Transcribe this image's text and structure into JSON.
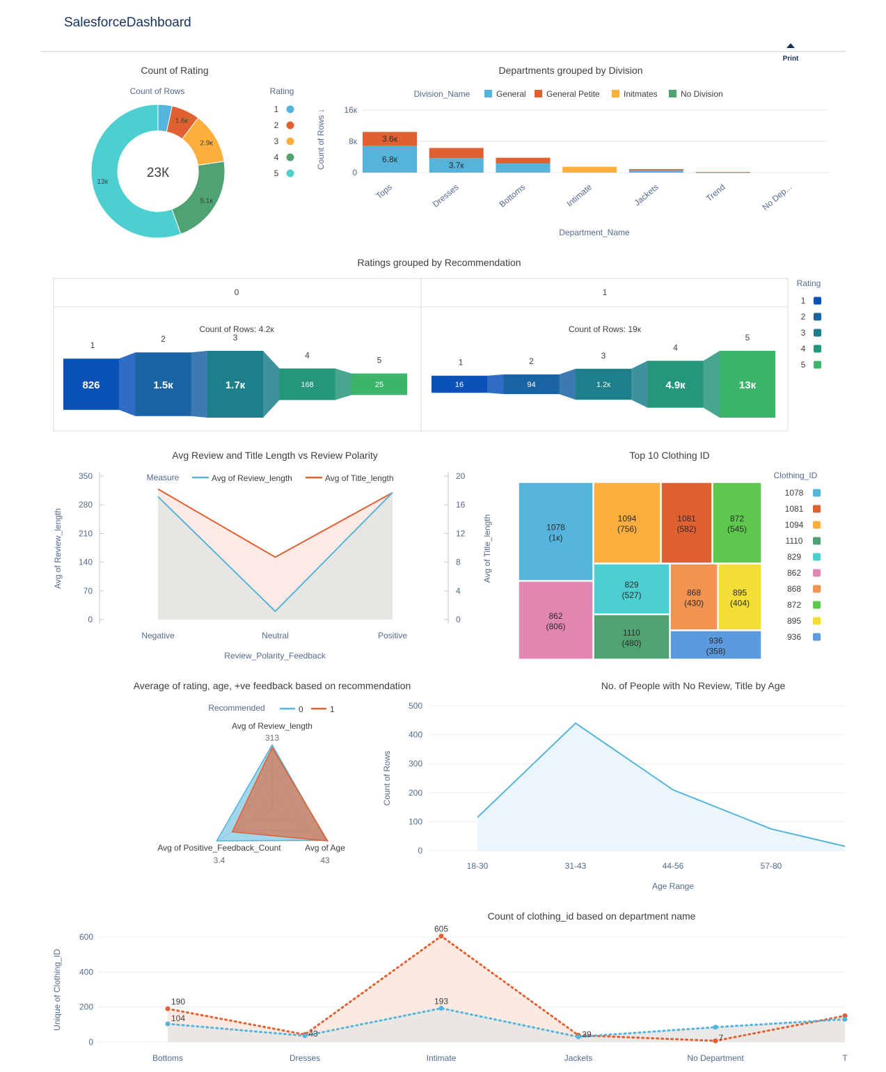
{
  "app_title": "SalesforceDashboard",
  "print_label": "Print",
  "colors": {
    "blue": "#54b4db",
    "orange": "#e16032",
    "yellow": "#fcaf3c",
    "green": "#4fa372",
    "teal": "#4dcfd1",
    "pink": "#e287b2",
    "lightorange": "#f29352",
    "lime": "#5dc84d",
    "gold": "#f2de35",
    "mid_blue": "#5c9ade"
  },
  "rating_donut": {
    "title": "Count of Rating",
    "subtitle": "Count of Rows",
    "center_label": "23К",
    "legend_title": "Rating",
    "chart_data": {
      "type": "pie",
      "categories": [
        "1",
        "2",
        "3",
        "4",
        "5"
      ],
      "values": [
        0.8,
        1.6,
        2.9,
        5.1,
        13
      ],
      "labels": [
        "",
        "1.6к",
        "2.9к",
        "5.1к",
        "13к"
      ],
      "colors": [
        "#54b4db",
        "#e16032",
        "#fcaf3c",
        "#4fa372",
        "#4dcfd1"
      ],
      "total_label": "23К"
    }
  },
  "dept_division": {
    "title": "Departments grouped by Division",
    "legend_title": "Division_Name",
    "ylabel": "Count of Rows ↓",
    "xlabel": "Department_Name",
    "chart_data": {
      "type": "bar",
      "categories": [
        "Tops",
        "Dresses",
        "Bottoms",
        "Intimate",
        "Jackets",
        "Trend",
        "No Dep..."
      ],
      "series": [
        {
          "name": "General",
          "values": [
            6.8,
            3.7,
            2.4,
            0,
            0.6,
            0.1,
            0
          ],
          "color": "#54b4db"
        },
        {
          "name": "General Petite",
          "values": [
            3.6,
            2.6,
            1.4,
            0,
            0.3,
            0.05,
            0
          ],
          "color": "#e16032"
        },
        {
          "name": "Initmates",
          "values": [
            0,
            0,
            0,
            1.5,
            0,
            0,
            0
          ],
          "color": "#fcaf3c"
        },
        {
          "name": "No Division",
          "values": [
            0,
            0,
            0,
            0,
            0,
            0,
            0
          ],
          "color": "#4fa372"
        }
      ],
      "data_labels": [
        [
          "6.8к",
          "3.7к",
          "",
          "",
          "",
          "",
          ""
        ],
        [
          "3.6к",
          "",
          "",
          "",
          "",
          "",
          ""
        ]
      ],
      "ylim": [
        0,
        16
      ],
      "yticks": [
        "0",
        "8к",
        "16к"
      ],
      "unit": "thousands"
    }
  },
  "ratings_rec": {
    "title": "Ratings grouped by Recommendation",
    "legend_title": "Rating",
    "legend": [
      {
        "label": "1",
        "color": "#0b52b8"
      },
      {
        "label": "2",
        "color": "#1a64a4"
      },
      {
        "label": "3",
        "color": "#1c7f8a"
      },
      {
        "label": "4",
        "color": "#26967a"
      },
      {
        "label": "5",
        "color": "#3cb56a"
      }
    ],
    "panels": [
      {
        "header": "0",
        "count_label": "Count of Rows: 4.2к",
        "steps": [
          {
            "rating": "1",
            "label": "826",
            "value": 826
          },
          {
            "rating": "2",
            "label": "1.5к",
            "value": 1500
          },
          {
            "rating": "3",
            "label": "1.7к",
            "value": 1700
          },
          {
            "rating": "4",
            "label": "168",
            "value": 168
          },
          {
            "rating": "5",
            "label": "25",
            "value": 25
          }
        ]
      },
      {
        "header": "1",
        "count_label": "Count of Rows: 19к",
        "steps": [
          {
            "rating": "1",
            "label": "16",
            "value": 16
          },
          {
            "rating": "2",
            "label": "94",
            "value": 94
          },
          {
            "rating": "3",
            "label": "1.2к",
            "value": 1200
          },
          {
            "rating": "4",
            "label": "4.9к",
            "value": 4900
          },
          {
            "rating": "5",
            "label": "13к",
            "value": 13000
          }
        ]
      }
    ]
  },
  "review_title_len": {
    "title": "Avg Review and Title Length vs Review Polarity",
    "legend_title": "Measure",
    "chart_data": {
      "type": "line",
      "categories": [
        "Negative",
        "Neutral",
        "Positive"
      ],
      "series": [
        {
          "name": "Avg of Review_length",
          "axis": "left",
          "values": [
            300,
            20,
            310
          ],
          "color": "#54b4db"
        },
        {
          "name": "Avg of Title_length",
          "axis": "right",
          "values": [
            18.2,
            8.7,
            17.7
          ],
          "color": "#e16032"
        }
      ],
      "ylabel": "Avg of Review_length",
      "y2label": "Avg of Title_length",
      "xlabel": "Review_Polarity_Feedback",
      "ylim": [
        0,
        350
      ],
      "yticks": [
        "0",
        "70",
        "140",
        "210",
        "280",
        "350"
      ],
      "y2lim": [
        0,
        20
      ],
      "y2ticks": [
        "0",
        "4",
        "8",
        "12",
        "16",
        "20"
      ]
    }
  },
  "top_clothing": {
    "title": "Top 10 Clothing ID",
    "legend_title": "Clothing_ID",
    "legend": [
      {
        "label": "1078",
        "color": "#54b4db"
      },
      {
        "label": "1081",
        "color": "#e16032"
      },
      {
        "label": "1094",
        "color": "#fcaf3c"
      },
      {
        "label": "1110",
        "color": "#4fa372"
      },
      {
        "label": "829",
        "color": "#4dcfd1"
      },
      {
        "label": "862",
        "color": "#e287b2"
      },
      {
        "label": "868",
        "color": "#f29352"
      },
      {
        "label": "872",
        "color": "#5dc84d"
      },
      {
        "label": "895",
        "color": "#f2de35"
      },
      {
        "label": "936",
        "color": "#5c9ade"
      }
    ],
    "chart_data": {
      "type": "treemap",
      "items": [
        {
          "id": "1078",
          "value_label": "(1к)",
          "value": 1024
        },
        {
          "id": "1094",
          "value_label": "(756)",
          "value": 756
        },
        {
          "id": "1081",
          "value_label": "(582)",
          "value": 582
        },
        {
          "id": "872",
          "value_label": "(545)",
          "value": 545
        },
        {
          "id": "829",
          "value_label": "(527)",
          "value": 527
        },
        {
          "id": "868",
          "value_label": "(430)",
          "value": 430
        },
        {
          "id": "895",
          "value_label": "(404)",
          "value": 404
        },
        {
          "id": "862",
          "value_label": "(806)",
          "value": 806
        },
        {
          "id": "1110",
          "value_label": "(480)",
          "value": 480
        },
        {
          "id": "936",
          "value_label": "(358)",
          "value": 358
        }
      ]
    }
  },
  "avg_radar": {
    "title": "Average of rating, age, +ve feedback based on recommendation",
    "legend_title": "Recommended",
    "chart_data": {
      "type": "radar",
      "axes": [
        "Avg of Review_length",
        "Avg of Age",
        "Avg of Positive_Feedback_Count"
      ],
      "axis_values": [
        "313",
        "43",
        "3.4"
      ],
      "series": [
        {
          "name": "0",
          "values": [
            1.0,
            0.98,
            1.0
          ],
          "color": "#54b4db"
        },
        {
          "name": "1",
          "values": [
            0.96,
            1.0,
            0.72
          ],
          "color": "#e16032"
        }
      ]
    }
  },
  "no_review": {
    "title": "No. of People with No Review, Title by Age",
    "chart_data": {
      "type": "area",
      "categories": [
        "18-30",
        "31-43",
        "44-56",
        "57-80",
        ""
      ],
      "values": [
        115,
        440,
        210,
        75,
        15
      ],
      "ylabel": "Count of Rows",
      "xlabel": "Age Range",
      "ylim": [
        0,
        500
      ],
      "yticks": [
        "0",
        "100",
        "200",
        "300",
        "400",
        "500"
      ],
      "color": "#54b4db"
    }
  },
  "clothing_dept": {
    "title": "Count of clothing_id based on department name",
    "chart_data": {
      "type": "line",
      "categories": [
        "Bottoms",
        "Dresses",
        "Intimate",
        "Jackets",
        "No Department",
        "T"
      ],
      "series": [
        {
          "name": "orange",
          "values": [
            190,
            43,
            605,
            39,
            7,
            150
          ],
          "labels": [
            "190",
            "43",
            "605",
            "39",
            "7",
            ""
          ],
          "color": "#e16032"
        },
        {
          "name": "blue",
          "values": [
            104,
            36,
            193,
            30,
            85,
            130
          ],
          "labels": [
            "104",
            "",
            "193",
            "",
            "",
            ""
          ],
          "color": "#54b4db"
        }
      ],
      "ylabel": "Unique of Clothing_ID",
      "ylim": [
        0,
        600
      ],
      "yticks": [
        "0",
        "200",
        "400",
        "600"
      ]
    }
  }
}
